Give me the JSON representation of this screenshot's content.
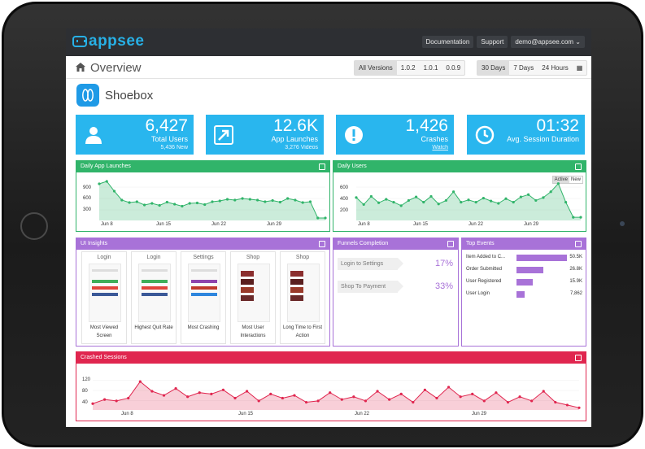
{
  "topbar": {
    "logo": "appsee",
    "nav": [
      "Documentation",
      "Support",
      "demo@appsee.com ⌄"
    ]
  },
  "header": {
    "title": "Overview",
    "versions": [
      "All Versions",
      "1.0.2",
      "1.0.1",
      "0.0.9"
    ],
    "ranges": [
      "30 Days",
      "7 Days",
      "24 Hours"
    ]
  },
  "app": {
    "name": "Shoebox"
  },
  "stats": [
    {
      "value": "6,427",
      "label": "Total Users",
      "sub": "5,436 New",
      "icon": "user-icon"
    },
    {
      "value": "12.6K",
      "label": "App Launches",
      "sub": "3,276 Videos",
      "icon": "launch-arrow-icon"
    },
    {
      "value": "1,426",
      "label": "Crashes",
      "sub": "Watch",
      "icon": "alert-icon"
    },
    {
      "value": "01:32",
      "label": "Avg. Session Duration",
      "sub": "",
      "icon": "clock-icon"
    }
  ],
  "daily_launches": {
    "title": "Daily App Launches",
    "x_labels": [
      "Jun 8",
      "Jun 15",
      "Jun 22",
      "Jun 29"
    ],
    "y_labels": [
      "900",
      "600",
      "300"
    ],
    "ymax": 1000,
    "values": [
      880,
      940,
      700,
      480,
      420,
      440,
      360,
      400,
      350,
      430,
      380,
      330,
      400,
      410,
      370,
      440,
      460,
      500,
      480,
      520,
      500,
      480,
      440,
      470,
      430,
      520,
      480,
      420,
      440,
      40,
      40
    ]
  },
  "daily_users": {
    "title": "Daily Users",
    "toggle": [
      "Active",
      "New"
    ],
    "x_labels": [
      "Jun 8",
      "Jun 15",
      "Jun 22",
      "Jun 29"
    ],
    "y_labels": [
      "600",
      "400",
      "200"
    ],
    "ymax": 700,
    "values": [
      380,
      260,
      400,
      290,
      350,
      300,
      240,
      330,
      390,
      300,
      400,
      270,
      330,
      480,
      300,
      340,
      300,
      370,
      320,
      280,
      360,
      300,
      390,
      430,
      330,
      380,
      480,
      620,
      300,
      40,
      40
    ]
  },
  "ui_insights": {
    "title": "UI Insights",
    "shots": [
      {
        "title": "Login",
        "caption": "Most Viewed Screen"
      },
      {
        "title": "Login",
        "caption": "Highest Quit Rate"
      },
      {
        "title": "Settings",
        "caption": "Most Crashing"
      },
      {
        "title": "Shop",
        "caption": "Most User Interactions"
      },
      {
        "title": "Shop",
        "caption": "Long Time to First Action"
      }
    ]
  },
  "funnels": {
    "title": "Funnels Completion",
    "items": [
      {
        "label": "Login to Settings",
        "pct": "17%"
      },
      {
        "label": "Shop To Payment",
        "pct": "33%"
      }
    ]
  },
  "top_events": {
    "title": "Top Events",
    "items": [
      {
        "label": "Item Added to C...",
        "value": "50.5K",
        "fraction": 1.0
      },
      {
        "label": "Order Submitted",
        "value": "26.8K",
        "fraction": 0.53
      },
      {
        "label": "User Registered",
        "value": "15.9K",
        "fraction": 0.32
      },
      {
        "label": "User Login",
        "value": "7,862",
        "fraction": 0.16
      }
    ]
  },
  "crashed": {
    "title": "Crashed Sessions",
    "x_labels": [
      "Jun 8",
      "Jun 15",
      "Jun 22",
      "Jun 29"
    ],
    "y_labels": [
      "120",
      "80",
      "40"
    ],
    "ymax": 130,
    "values": [
      20,
      35,
      30,
      40,
      100,
      65,
      50,
      75,
      45,
      60,
      55,
      70,
      40,
      65,
      30,
      55,
      40,
      50,
      25,
      30,
      60,
      35,
      45,
      30,
      65,
      35,
      55,
      25,
      70,
      40,
      80,
      45,
      55,
      30,
      60,
      25,
      45,
      30,
      65,
      25,
      15,
      5
    ]
  },
  "colors": {
    "blue": "#29b6ee",
    "green": "#31b46a",
    "purple": "#a872d8",
    "red": "#e0264f"
  }
}
